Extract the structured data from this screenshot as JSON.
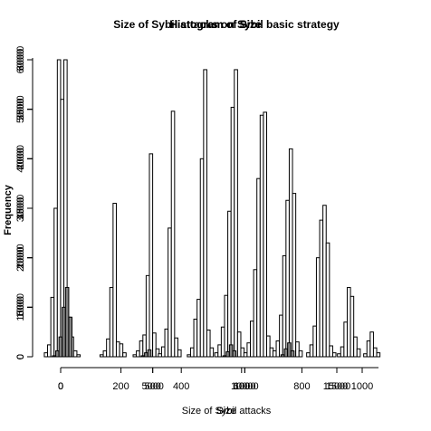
{
  "chart_data": {
    "type": "bar",
    "overlay_count": 3,
    "titles": [
      "Size of Sybil attacks on Sybil basic strategy",
      "Histogram of Size",
      "Histogram of Size"
    ],
    "xlabels": [
      "Size of Sybil attacks",
      "Size",
      "Size"
    ],
    "ylabel": "Frequency",
    "x_ticks": [
      [
        "0",
        "200",
        "400",
        "600",
        "800",
        "1000"
      ],
      [
        "0",
        "500",
        "1000",
        "1500"
      ],
      [
        "0",
        "5000",
        "10000",
        "15000"
      ]
    ],
    "y_ticks": [
      [
        "0",
        "500",
        "1000",
        "1500",
        "2000",
        "2500",
        "3000"
      ],
      [
        "0",
        "1000",
        "2000",
        "3000",
        "4000",
        "5000",
        "6000"
      ],
      [
        "0",
        "10000",
        "20000",
        "30000",
        "40000",
        "50000",
        "60000"
      ]
    ],
    "ylim": [
      0,
      3000
    ],
    "clusters": [
      {
        "x": 14,
        "values": [
          40,
          120,
          600,
          1500,
          3000,
          2600,
          3000,
          400,
          200,
          60,
          20
        ]
      },
      {
        "x": 180,
        "values": [
          20,
          60,
          180,
          700,
          1550,
          150,
          130,
          40
        ]
      },
      {
        "x": 288,
        "values": [
          20,
          60,
          160,
          220,
          820,
          2050,
          240,
          80
        ]
      },
      {
        "x": 365,
        "values": [
          30,
          100,
          280,
          1300,
          2480,
          190,
          70
        ]
      },
      {
        "x": 465,
        "values": [
          20,
          90,
          380,
          580,
          2000,
          2900,
          270,
          90
        ]
      },
      {
        "x": 560,
        "values": [
          40,
          120,
          300,
          620,
          1470,
          2520,
          2900,
          250,
          90
        ]
      },
      {
        "x": 655,
        "values": [
          40,
          140,
          360,
          880,
          1800,
          2440,
          2470,
          210,
          90
        ]
      },
      {
        "x": 750,
        "values": [
          60,
          160,
          420,
          1020,
          1580,
          2100,
          1650,
          150,
          60
        ]
      },
      {
        "x": 860,
        "values": [
          40,
          120,
          310,
          1000,
          1380,
          1530,
          1150,
          110,
          40
        ]
      },
      {
        "x": 950,
        "values": [
          30,
          100,
          350,
          700,
          610,
          200,
          80
        ]
      },
      {
        "x": 1025,
        "values": [
          30,
          160,
          250,
          90,
          40
        ]
      }
    ],
    "dark_clusters": [
      {
        "x": 14,
        "values": [
          10,
          60,
          200,
          500,
          700,
          400
        ]
      },
      {
        "x": 288,
        "values": [
          10,
          40,
          70
        ]
      },
      {
        "x": 560,
        "values": [
          10,
          50,
          120,
          60
        ]
      },
      {
        "x": 750,
        "values": [
          20,
          80,
          140,
          60
        ]
      }
    ]
  }
}
